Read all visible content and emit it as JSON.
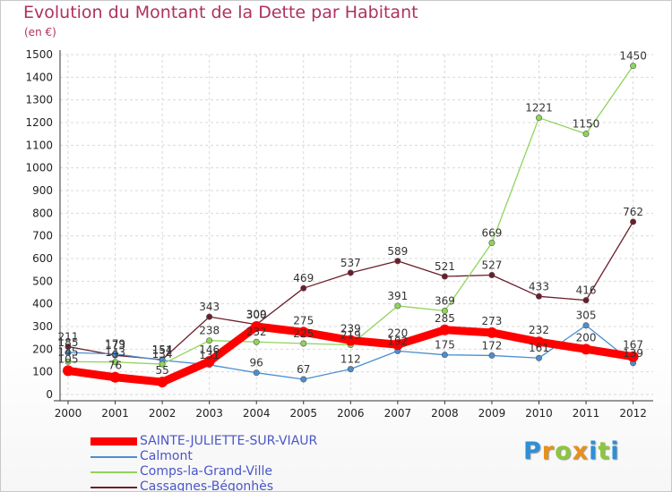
{
  "header": {
    "title": "Evolution du Montant de la Dette par Habitant",
    "unit": "(en €)"
  },
  "logo": {
    "text": "Proxiti",
    "letter_colors": [
      "#2e8fd6",
      "#e8901c",
      "#8dc63f",
      "#e8901c",
      "#2e8fd6",
      "#8dc63f",
      "#2e8fd6"
    ]
  },
  "chart_data": {
    "type": "line",
    "title": "Evolution du Montant de la Dette par Habitant",
    "subtitle": "(en €)",
    "xlabel": "",
    "ylabel": "",
    "x": [
      "2000",
      "2001",
      "2002",
      "2003",
      "2004",
      "2005",
      "2006",
      "2007",
      "2008",
      "2009",
      "2010",
      "2011",
      "2012"
    ],
    "ylim": [
      0,
      1500
    ],
    "yticks": [
      0,
      100,
      200,
      300,
      400,
      500,
      600,
      700,
      800,
      900,
      1000,
      1100,
      1200,
      1300,
      1400,
      1500
    ],
    "grid": true,
    "legend": "bottom-left",
    "series": [
      {
        "name": "Cassagnes-Bégonhès",
        "color": "#6b1e2a",
        "values": [
          211,
          173,
          154,
          343,
          309,
          469,
          537,
          589,
          521,
          527,
          433,
          416,
          762
        ],
        "labels": [
          "211",
          "173",
          "154",
          "343",
          "309",
          "469",
          "537",
          "589",
          "521",
          "527",
          "433",
          "416",
          "762"
        ]
      },
      {
        "name": "Calmont",
        "color": "#4a8fd0",
        "values": [
          185,
          179,
          151,
          131,
          96,
          67,
          112,
          192,
          175,
          172,
          161,
          305,
          139
        ],
        "labels": [
          "185",
          "179",
          "151",
          "131",
          "96",
          "67",
          "112",
          "192",
          "175",
          "172",
          "161",
          "305",
          "139"
        ]
      },
      {
        "name": "Comps-la-Grand-Ville",
        "color": "#8fd45a",
        "values": [
          145,
          143,
          134,
          238,
          232,
          225,
          219,
          391,
          369,
          669,
          1221,
          1150,
          1450
        ],
        "labels": [
          "145",
          "143",
          "134",
          "238",
          "232",
          "225",
          "219",
          "391",
          "369",
          "669",
          "1221",
          "1150",
          "1450"
        ]
      },
      {
        "name": "SAINTE-JULIETTE-SUR-VIAUR",
        "color": "#ff0000",
        "values": [
          105,
          76,
          55,
          146,
          300,
          275,
          239,
          220,
          285,
          273,
          232,
          200,
          167
        ],
        "labels": [
          "105",
          "76",
          "55",
          "146",
          "300",
          "275",
          "239",
          "220",
          "285",
          "273",
          "232",
          "200",
          "167"
        ]
      }
    ]
  },
  "legend": {
    "items": [
      {
        "label": "SAINTE-JULIETTE-SUR-VIAUR",
        "color": "#ff0000",
        "thick": true
      },
      {
        "label": "Calmont",
        "color": "#4a8fd0",
        "thick": false
      },
      {
        "label": "Comps-la-Grand-Ville",
        "color": "#8fd45a",
        "thick": false
      },
      {
        "label": "Cassagnes-Bégonhès",
        "color": "#6b1e2a",
        "thick": false
      }
    ]
  }
}
